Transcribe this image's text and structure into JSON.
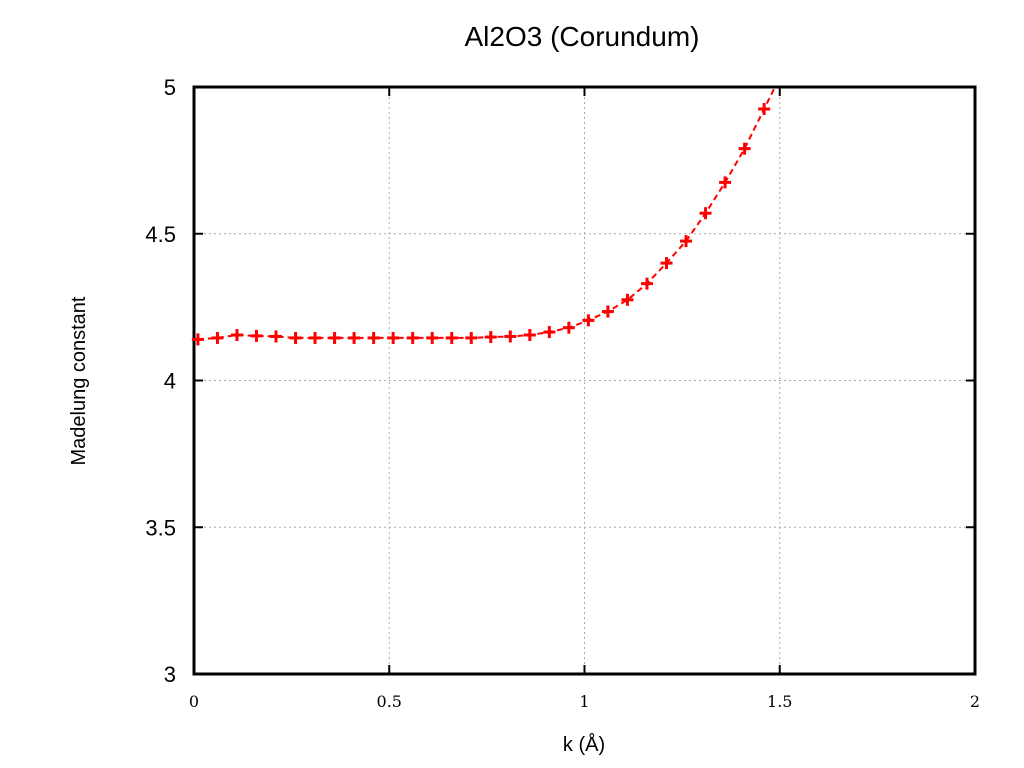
{
  "chart_data": {
    "type": "line",
    "title": "Al2O3 (Corundum)",
    "xlabel": "k (Å)",
    "ylabel": "Madelung constant",
    "xlim": [
      0,
      2
    ],
    "ylim": [
      3,
      5
    ],
    "xticks": [
      "0",
      "0.5",
      "1",
      "1.5",
      "2"
    ],
    "yticks": [
      "3",
      "3.5",
      "4",
      "4.5",
      "5"
    ],
    "grid": true,
    "legend": "none",
    "colors": {
      "series": "#ff0000",
      "axes": "#000000",
      "grid": "#aaaaaa"
    },
    "series": [
      {
        "style": "points+dashed-line",
        "marker": "plus",
        "x": [
          0.01,
          0.06,
          0.11,
          0.16,
          0.21,
          0.26,
          0.31,
          0.36,
          0.41,
          0.46,
          0.51,
          0.56,
          0.61,
          0.66,
          0.71,
          0.76,
          0.81,
          0.86,
          0.91,
          0.96,
          1.01,
          1.06,
          1.11,
          1.16,
          1.21,
          1.26,
          1.31,
          1.36,
          1.41,
          1.46
        ],
        "y": [
          4.14,
          4.145,
          4.155,
          4.152,
          4.15,
          4.145,
          4.145,
          4.145,
          4.145,
          4.145,
          4.145,
          4.145,
          4.145,
          4.145,
          4.145,
          4.148,
          4.15,
          4.155,
          4.165,
          4.18,
          4.205,
          4.235,
          4.275,
          4.33,
          4.4,
          4.475,
          4.57,
          4.675,
          4.79,
          4.925
        ]
      }
    ]
  }
}
